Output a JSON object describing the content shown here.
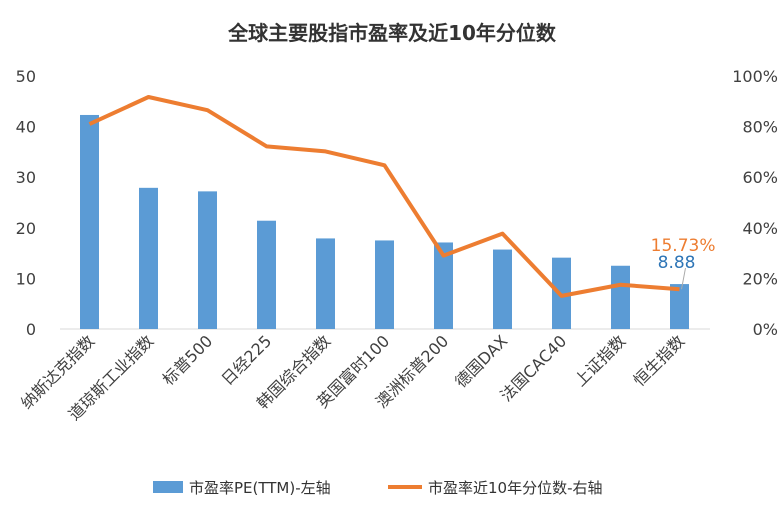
{
  "chart_data": {
    "type": "bar+line",
    "title": "全球主要股指市盈率及近10年分位数",
    "categories": [
      "纳斯达克指数",
      "道琼斯工业指数",
      "标普500",
      "日经225",
      "韩国综合指数",
      "英国富时100",
      "澳洲标普200",
      "德国DAX",
      "法国CAC40",
      "上证指数",
      "恒生指数"
    ],
    "series": [
      {
        "name": "市盈率PE(TTM)-左轴",
        "type": "bar",
        "axis": "left",
        "color": "#5B9BD5",
        "values": [
          42.3,
          27.9,
          27.2,
          21.4,
          17.9,
          17.5,
          17.1,
          15.7,
          14.1,
          12.5,
          8.88
        ]
      },
      {
        "name": "市盈率近10年分位数-右轴",
        "type": "line",
        "axis": "right",
        "color": "#ED7D31",
        "values": [
          81.0,
          91.7,
          86.5,
          72.2,
          70.2,
          64.7,
          29.0,
          37.7,
          13.1,
          17.5,
          15.73
        ]
      }
    ],
    "data_labels": [
      {
        "category": "恒生指数",
        "series": "市盈率近10年分位数-右轴",
        "text": "15.73%",
        "color": "#ED7D31"
      },
      {
        "category": "恒生指数",
        "series": "市盈率PE(TTM)-左轴",
        "text": "8.88",
        "color": "#2E75B6"
      }
    ],
    "y_left": {
      "lim": [
        0,
        50
      ],
      "ticks": [
        "0",
        "10",
        "20",
        "30",
        "40",
        "50"
      ]
    },
    "y_right": {
      "lim": [
        0,
        100
      ],
      "ticks": [
        "0%",
        "20%",
        "40%",
        "60%",
        "80%",
        "100%"
      ]
    },
    "grid": false,
    "legend": "bottom"
  }
}
